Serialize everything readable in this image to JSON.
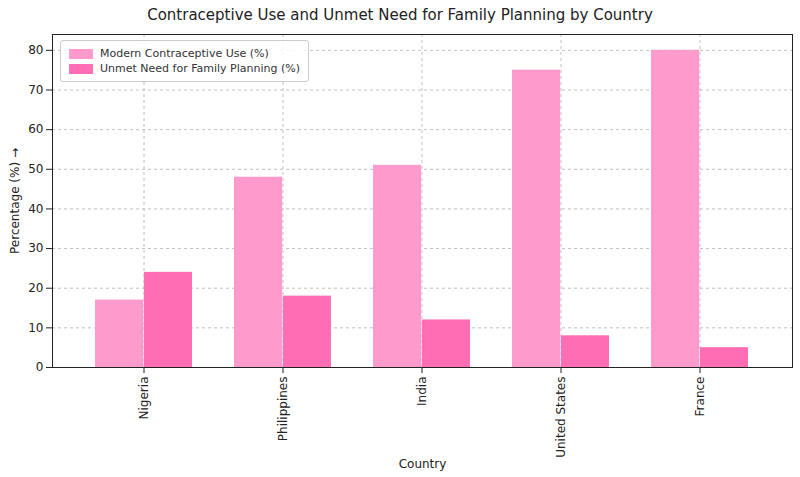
{
  "chart_data": {
    "type": "bar",
    "title": "Contraceptive Use and Unmet Need for Family Planning by Country",
    "x_label": "Country",
    "y_label": "Percentage (%)",
    "categories": [
      "Nigeria",
      "Philippines",
      "India",
      "United States",
      "France"
    ],
    "series": [
      {
        "name": "Modern Contraceptive Use (%)",
        "color": "#ff9acd",
        "values": [
          17,
          48,
          51,
          75,
          80
        ]
      },
      {
        "name": "Unmet Need for Family Planning (%)",
        "color": "#ff6eb4",
        "values": [
          24,
          18,
          12,
          8,
          5
        ]
      }
    ],
    "ylim": [
      0,
      84
    ],
    "yticks": [
      0,
      10,
      20,
      30,
      40,
      50,
      60,
      70,
      80
    ],
    "grid": true,
    "legend": "upper left"
  }
}
